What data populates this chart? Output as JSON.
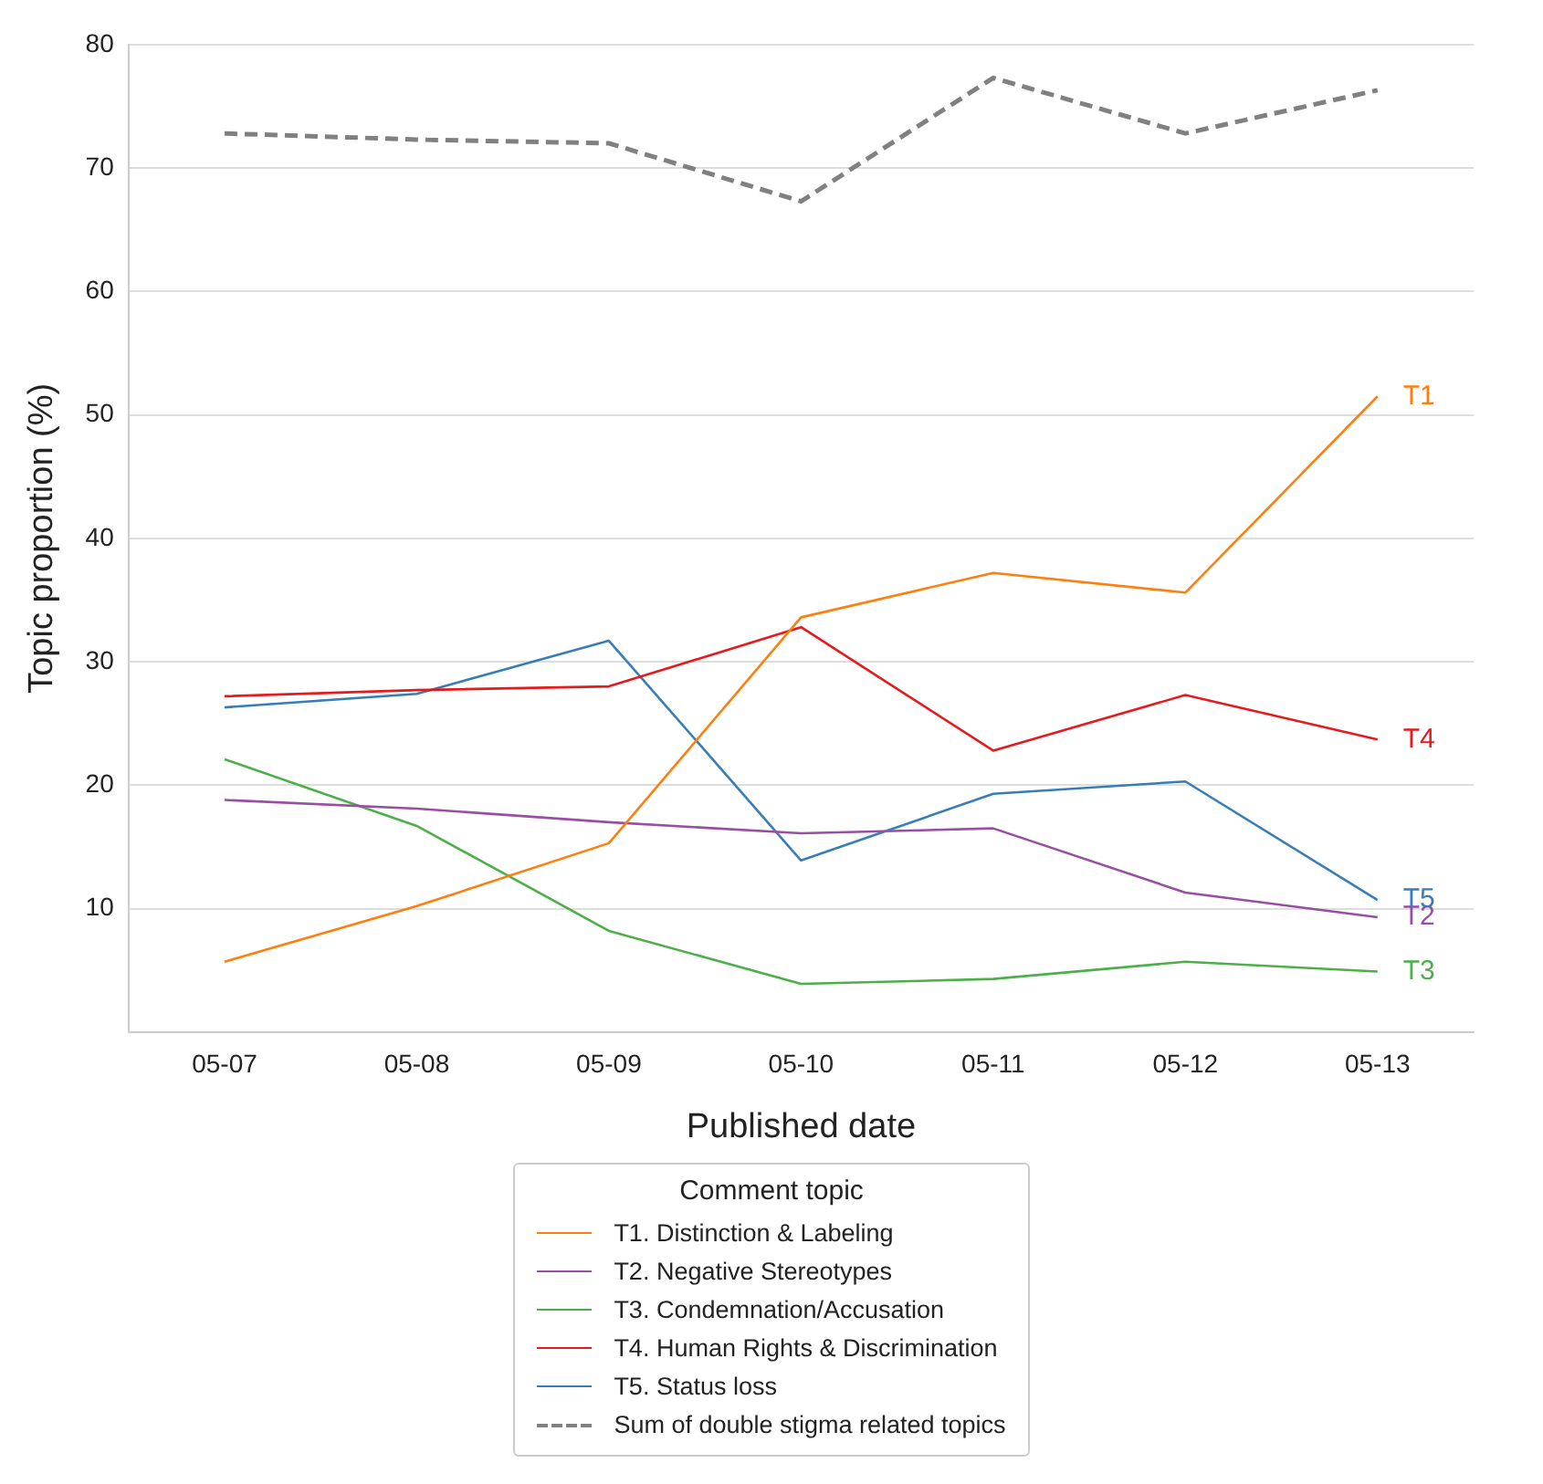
{
  "chart_data": {
    "type": "line",
    "xlabel": "Published date",
    "ylabel": "Topic proportion (%)",
    "legend_title": "Comment topic",
    "categories": [
      "05-07",
      "05-08",
      "05-09",
      "05-10",
      "05-11",
      "05-12",
      "05-13"
    ],
    "series": [
      {
        "name": "T1. Distinction & Labeling",
        "color": "#ff7f0e",
        "values": [
          5.7,
          10.2,
          15.3,
          33.6,
          37.2,
          35.6,
          51.5
        ]
      },
      {
        "name": "T2. Negative Stereotypes",
        "color": "#984ea3",
        "values": [
          18.8,
          18.1,
          17.0,
          16.1,
          16.5,
          11.3,
          9.3
        ]
      },
      {
        "name": "T3. Condemnation/Accusation",
        "color": "#4daf4a",
        "values": [
          22.1,
          16.7,
          8.2,
          3.9,
          4.3,
          5.7,
          4.9
        ]
      },
      {
        "name": "T4. Human Rights & Discrimination",
        "color": "#e41a1c",
        "values": [
          27.2,
          27.7,
          28.0,
          32.8,
          22.8,
          27.3,
          23.7
        ]
      },
      {
        "name": "T5. Status loss",
        "color": "#377eb8",
        "values": [
          26.3,
          27.4,
          31.7,
          13.9,
          19.3,
          20.3,
          10.7
        ]
      },
      {
        "name": "Sum of double stigma related topics",
        "color": "#808080",
        "line_style": "dashed",
        "values": [
          72.8,
          72.3,
          72.0,
          67.3,
          77.3,
          72.8,
          76.3
        ]
      }
    ],
    "ylim": [
      0,
      80
    ],
    "yticks": [
      10,
      20,
      30,
      40,
      50,
      60,
      70,
      80
    ],
    "grid": "y",
    "legend": "bottom",
    "marker": "none",
    "line_style": "solid",
    "annotations": [
      {
        "text": "T1",
        "x": "05-13",
        "y": 51.5
      },
      {
        "text": "T2",
        "x": "05-13",
        "y": 9.3
      },
      {
        "text": "T3",
        "x": "05-13",
        "y": 4.9
      },
      {
        "text": "T4",
        "x": "05-13",
        "y": 23.7
      },
      {
        "text": "T5",
        "x": "05-13",
        "y": 10.7
      }
    ]
  }
}
